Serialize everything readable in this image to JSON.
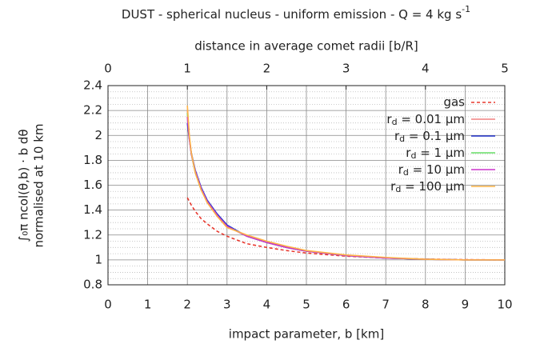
{
  "chart_data": {
    "type": "line",
    "title": "DUST - spherical nucleus - uniform emission - Q = 4 kg s",
    "title_superscript": "-1",
    "xlabel": "impact parameter, b [km]",
    "x2label": "distance in average comet radii [b/R]",
    "ylabel": [
      "∫₀π ncol(θ,b) · b dθ",
      "normalised at 10 km"
    ],
    "xlim": [
      0,
      10
    ],
    "xticks": [
      0,
      1,
      2,
      3,
      4,
      5,
      6,
      7,
      8,
      9,
      10
    ],
    "x2lim": [
      0,
      5
    ],
    "x2ticks": [
      0,
      1,
      2,
      3,
      4,
      5
    ],
    "ylim": [
      0.8,
      2.4
    ],
    "yticks": [
      0.8,
      1,
      1.2,
      1.4,
      1.6,
      1.8,
      2,
      2.2,
      2.4
    ],
    "grid": true,
    "legend": "upper right",
    "x": [
      2,
      2.05,
      2.1,
      2.2,
      2.35,
      2.5,
      2.75,
      3,
      3.5,
      4,
      4.5,
      5,
      6,
      7,
      8,
      9,
      10
    ],
    "series": [
      {
        "name": "gas",
        "color": "#e8392f",
        "dashed": true,
        "values": [
          1.5,
          1.47,
          1.44,
          1.39,
          1.33,
          1.29,
          1.23,
          1.19,
          1.13,
          1.1,
          1.075,
          1.055,
          1.03,
          1.015,
          1.007,
          1.002,
          1.0
        ]
      },
      {
        "name": "rd = 0.01 μm",
        "color": "#f08080",
        "values": [
          2.2,
          1.98,
          1.85,
          1.7,
          1.56,
          1.47,
          1.36,
          1.27,
          1.19,
          1.14,
          1.1,
          1.07,
          1.035,
          1.015,
          1.005,
          1.0,
          1.0
        ]
      },
      {
        "name": "rd = 0.1 μm",
        "color": "#2233cc",
        "values": [
          2.1,
          1.97,
          1.86,
          1.72,
          1.58,
          1.48,
          1.37,
          1.28,
          1.19,
          1.14,
          1.1,
          1.07,
          1.035,
          1.015,
          1.005,
          1.0,
          1.0
        ]
      },
      {
        "name": "rd = 1 μm",
        "color": "#66dd66",
        "values": [
          2.18,
          1.98,
          1.85,
          1.7,
          1.56,
          1.47,
          1.36,
          1.27,
          1.19,
          1.14,
          1.1,
          1.07,
          1.035,
          1.015,
          1.005,
          1.0,
          1.0
        ]
      },
      {
        "name": "rd = 10 μm",
        "color": "#cc33cc",
        "values": [
          2.15,
          1.97,
          1.85,
          1.71,
          1.57,
          1.47,
          1.36,
          1.27,
          1.19,
          1.14,
          1.1,
          1.07,
          1.035,
          1.015,
          1.005,
          1.0,
          1.0
        ]
      },
      {
        "name": "rd = 100 μm",
        "color": "#ffb347",
        "values": [
          2.24,
          2.0,
          1.86,
          1.7,
          1.56,
          1.46,
          1.35,
          1.26,
          1.2,
          1.15,
          1.11,
          1.075,
          1.04,
          1.02,
          1.005,
          1.0,
          1.0
        ]
      }
    ]
  }
}
